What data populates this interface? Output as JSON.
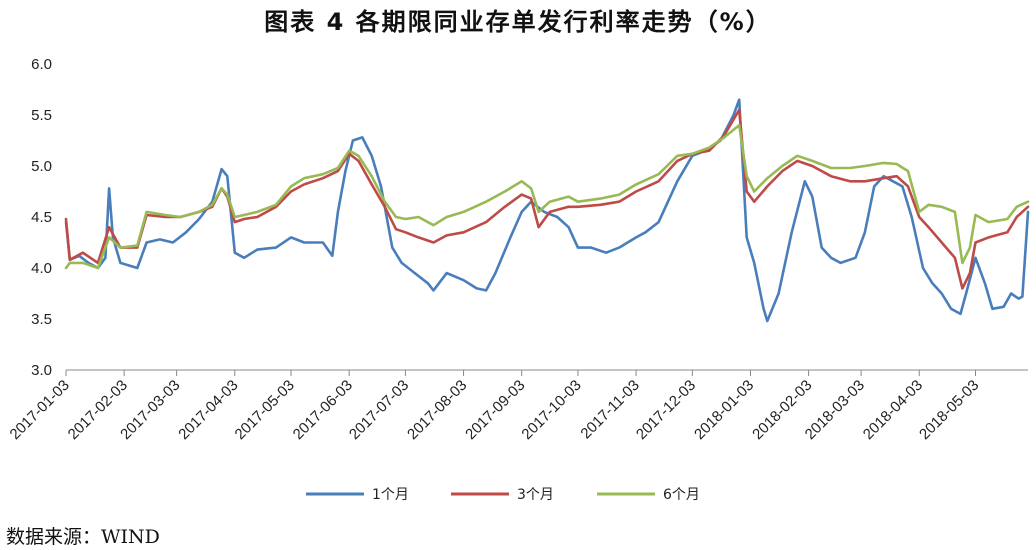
{
  "chart_data": {
    "type": "line",
    "title": "图表 4   各期限同业存单发行利率走势（%）",
    "xlabel": "",
    "ylabel": "",
    "ylim": [
      3.0,
      6.0
    ],
    "yticks": [
      "6.0",
      "5.5",
      "5.0",
      "4.5",
      "4.0",
      "3.5",
      "3.0"
    ],
    "xlim": [
      "2017-01-03",
      "2018-05-31"
    ],
    "xticks": [
      "2017-01-03",
      "2017-02-03",
      "2017-03-03",
      "2017-04-03",
      "2017-05-03",
      "2017-06-03",
      "2017-07-03",
      "2017-08-03",
      "2017-09-03",
      "2017-10-03",
      "2017-11-03",
      "2017-12-03",
      "2018-01-03",
      "2018-02-03",
      "2018-03-03",
      "2018-04-03",
      "2018-05-03"
    ],
    "grid": false,
    "legend_position": "bottom",
    "series": [
      {
        "name": "1个月",
        "color": "#4a7ebb",
        "points": [
          [
            "2017-01-03",
            4.45
          ],
          [
            "2017-01-05",
            4.08
          ],
          [
            "2017-01-10",
            4.12
          ],
          [
            "2017-01-15",
            4.05
          ],
          [
            "2017-01-20",
            4.0
          ],
          [
            "2017-01-24",
            4.1
          ],
          [
            "2017-01-26",
            4.78
          ],
          [
            "2017-01-28",
            4.3
          ],
          [
            "2017-02-01",
            4.05
          ],
          [
            "2017-02-10",
            4.0
          ],
          [
            "2017-02-15",
            4.25
          ],
          [
            "2017-02-22",
            4.28
          ],
          [
            "2017-03-01",
            4.25
          ],
          [
            "2017-03-08",
            4.35
          ],
          [
            "2017-03-15",
            4.48
          ],
          [
            "2017-03-22",
            4.65
          ],
          [
            "2017-03-27",
            4.97
          ],
          [
            "2017-03-30",
            4.9
          ],
          [
            "2017-04-03",
            4.15
          ],
          [
            "2017-04-08",
            4.1
          ],
          [
            "2017-04-15",
            4.18
          ],
          [
            "2017-04-25",
            4.2
          ],
          [
            "2017-05-03",
            4.3
          ],
          [
            "2017-05-10",
            4.25
          ],
          [
            "2017-05-20",
            4.25
          ],
          [
            "2017-05-25",
            4.12
          ],
          [
            "2017-05-28",
            4.55
          ],
          [
            "2017-06-01",
            4.95
          ],
          [
            "2017-06-05",
            5.25
          ],
          [
            "2017-06-10",
            5.28
          ],
          [
            "2017-06-15",
            5.1
          ],
          [
            "2017-06-20",
            4.8
          ],
          [
            "2017-06-26",
            4.2
          ],
          [
            "2017-07-01",
            4.05
          ],
          [
            "2017-07-08",
            3.95
          ],
          [
            "2017-07-15",
            3.85
          ],
          [
            "2017-07-18",
            3.78
          ],
          [
            "2017-07-25",
            3.95
          ],
          [
            "2017-08-03",
            3.88
          ],
          [
            "2017-08-10",
            3.8
          ],
          [
            "2017-08-15",
            3.78
          ],
          [
            "2017-08-20",
            3.95
          ],
          [
            "2017-08-28",
            4.3
          ],
          [
            "2017-09-03",
            4.55
          ],
          [
            "2017-09-08",
            4.65
          ],
          [
            "2017-09-15",
            4.55
          ],
          [
            "2017-09-22",
            4.5
          ],
          [
            "2017-09-28",
            4.4
          ],
          [
            "2017-10-03",
            4.2
          ],
          [
            "2017-10-10",
            4.2
          ],
          [
            "2017-10-18",
            4.15
          ],
          [
            "2017-10-25",
            4.2
          ],
          [
            "2017-11-03",
            4.3
          ],
          [
            "2017-11-08",
            4.35
          ],
          [
            "2017-11-15",
            4.45
          ],
          [
            "2017-11-25",
            4.85
          ],
          [
            "2017-12-03",
            5.1
          ],
          [
            "2017-12-10",
            5.15
          ],
          [
            "2017-12-18",
            5.25
          ],
          [
            "2017-12-25",
            5.5
          ],
          [
            "2017-12-28",
            5.65
          ],
          [
            "2018-01-01",
            4.3
          ],
          [
            "2018-01-05",
            4.05
          ],
          [
            "2018-01-10",
            3.6
          ],
          [
            "2018-01-12",
            3.48
          ],
          [
            "2018-01-18",
            3.75
          ],
          [
            "2018-01-25",
            4.35
          ],
          [
            "2018-02-01",
            4.85
          ],
          [
            "2018-02-05",
            4.7
          ],
          [
            "2018-02-10",
            4.2
          ],
          [
            "2018-02-15",
            4.1
          ],
          [
            "2018-02-20",
            4.05
          ],
          [
            "2018-02-28",
            4.1
          ],
          [
            "2018-03-05",
            4.35
          ],
          [
            "2018-03-10",
            4.8
          ],
          [
            "2018-03-15",
            4.9
          ],
          [
            "2018-03-20",
            4.85
          ],
          [
            "2018-03-25",
            4.8
          ],
          [
            "2018-03-30",
            4.5
          ],
          [
            "2018-04-05",
            4.0
          ],
          [
            "2018-04-10",
            3.85
          ],
          [
            "2018-04-15",
            3.75
          ],
          [
            "2018-04-20",
            3.6
          ],
          [
            "2018-04-25",
            3.55
          ],
          [
            "2018-04-28",
            3.75
          ],
          [
            "2018-05-03",
            4.1
          ],
          [
            "2018-05-08",
            3.85
          ],
          [
            "2018-05-12",
            3.6
          ],
          [
            "2018-05-18",
            3.62
          ],
          [
            "2018-05-22",
            3.75
          ],
          [
            "2018-05-26",
            3.7
          ],
          [
            "2018-05-28",
            3.72
          ],
          [
            "2018-05-31",
            4.55
          ]
        ]
      },
      {
        "name": "3个月",
        "color": "#be4b48",
        "points": [
          [
            "2017-01-03",
            4.48
          ],
          [
            "2017-01-05",
            4.08
          ],
          [
            "2017-01-12",
            4.15
          ],
          [
            "2017-01-20",
            4.05
          ],
          [
            "2017-01-26",
            4.4
          ],
          [
            "2017-02-01",
            4.2
          ],
          [
            "2017-02-10",
            4.2
          ],
          [
            "2017-02-15",
            4.52
          ],
          [
            "2017-02-25",
            4.5
          ],
          [
            "2017-03-05",
            4.5
          ],
          [
            "2017-03-15",
            4.55
          ],
          [
            "2017-03-22",
            4.6
          ],
          [
            "2017-03-27",
            4.78
          ],
          [
            "2017-03-30",
            4.7
          ],
          [
            "2017-04-03",
            4.45
          ],
          [
            "2017-04-08",
            4.48
          ],
          [
            "2017-04-15",
            4.5
          ],
          [
            "2017-04-25",
            4.6
          ],
          [
            "2017-05-03",
            4.75
          ],
          [
            "2017-05-10",
            4.82
          ],
          [
            "2017-05-20",
            4.88
          ],
          [
            "2017-05-28",
            4.95
          ],
          [
            "2017-06-03",
            5.12
          ],
          [
            "2017-06-08",
            5.05
          ],
          [
            "2017-06-15",
            4.82
          ],
          [
            "2017-06-22",
            4.6
          ],
          [
            "2017-06-28",
            4.38
          ],
          [
            "2017-07-03",
            4.35
          ],
          [
            "2017-07-10",
            4.3
          ],
          [
            "2017-07-18",
            4.25
          ],
          [
            "2017-07-25",
            4.32
          ],
          [
            "2017-08-03",
            4.35
          ],
          [
            "2017-08-15",
            4.45
          ],
          [
            "2017-08-25",
            4.6
          ],
          [
            "2017-09-03",
            4.72
          ],
          [
            "2017-09-08",
            4.68
          ],
          [
            "2017-09-12",
            4.4
          ],
          [
            "2017-09-18",
            4.55
          ],
          [
            "2017-09-28",
            4.6
          ],
          [
            "2017-10-03",
            4.6
          ],
          [
            "2017-10-15",
            4.62
          ],
          [
            "2017-10-25",
            4.65
          ],
          [
            "2017-11-03",
            4.75
          ],
          [
            "2017-11-15",
            4.85
          ],
          [
            "2017-11-25",
            5.05
          ],
          [
            "2017-12-03",
            5.12
          ],
          [
            "2017-12-12",
            5.15
          ],
          [
            "2017-12-20",
            5.3
          ],
          [
            "2017-12-28",
            5.55
          ],
          [
            "2018-01-01",
            4.75
          ],
          [
            "2018-01-05",
            4.65
          ],
          [
            "2018-01-12",
            4.8
          ],
          [
            "2018-01-20",
            4.95
          ],
          [
            "2018-01-28",
            5.05
          ],
          [
            "2018-02-05",
            5.0
          ],
          [
            "2018-02-15",
            4.9
          ],
          [
            "2018-02-25",
            4.85
          ],
          [
            "2018-03-05",
            4.85
          ],
          [
            "2018-03-15",
            4.88
          ],
          [
            "2018-03-22",
            4.9
          ],
          [
            "2018-03-28",
            4.8
          ],
          [
            "2018-04-03",
            4.5
          ],
          [
            "2018-04-08",
            4.4
          ],
          [
            "2018-04-15",
            4.25
          ],
          [
            "2018-04-22",
            4.1
          ],
          [
            "2018-04-26",
            3.8
          ],
          [
            "2018-04-30",
            3.95
          ],
          [
            "2018-05-03",
            4.25
          ],
          [
            "2018-05-10",
            4.3
          ],
          [
            "2018-05-20",
            4.35
          ],
          [
            "2018-05-25",
            4.5
          ],
          [
            "2018-05-31",
            4.6
          ]
        ]
      },
      {
        "name": "6个月",
        "color": "#98b954",
        "points": [
          [
            "2017-01-03",
            4.0
          ],
          [
            "2017-01-05",
            4.05
          ],
          [
            "2017-01-12",
            4.05
          ],
          [
            "2017-01-20",
            4.0
          ],
          [
            "2017-01-26",
            4.3
          ],
          [
            "2017-02-01",
            4.2
          ],
          [
            "2017-02-10",
            4.22
          ],
          [
            "2017-02-15",
            4.55
          ],
          [
            "2017-02-25",
            4.52
          ],
          [
            "2017-03-05",
            4.5
          ],
          [
            "2017-03-15",
            4.55
          ],
          [
            "2017-03-22",
            4.62
          ],
          [
            "2017-03-27",
            4.78
          ],
          [
            "2017-03-30",
            4.72
          ],
          [
            "2017-04-03",
            4.5
          ],
          [
            "2017-04-08",
            4.52
          ],
          [
            "2017-04-15",
            4.55
          ],
          [
            "2017-04-25",
            4.62
          ],
          [
            "2017-05-03",
            4.8
          ],
          [
            "2017-05-10",
            4.88
          ],
          [
            "2017-05-20",
            4.92
          ],
          [
            "2017-05-28",
            4.98
          ],
          [
            "2017-06-03",
            5.15
          ],
          [
            "2017-06-08",
            5.1
          ],
          [
            "2017-06-15",
            4.9
          ],
          [
            "2017-06-22",
            4.65
          ],
          [
            "2017-06-28",
            4.5
          ],
          [
            "2017-07-03",
            4.48
          ],
          [
            "2017-07-10",
            4.5
          ],
          [
            "2017-07-18",
            4.42
          ],
          [
            "2017-07-25",
            4.5
          ],
          [
            "2017-08-03",
            4.55
          ],
          [
            "2017-08-15",
            4.65
          ],
          [
            "2017-08-25",
            4.75
          ],
          [
            "2017-09-03",
            4.85
          ],
          [
            "2017-09-08",
            4.78
          ],
          [
            "2017-09-12",
            4.55
          ],
          [
            "2017-09-18",
            4.65
          ],
          [
            "2017-09-28",
            4.7
          ],
          [
            "2017-10-03",
            4.65
          ],
          [
            "2017-10-15",
            4.68
          ],
          [
            "2017-10-25",
            4.72
          ],
          [
            "2017-11-03",
            4.82
          ],
          [
            "2017-11-15",
            4.92
          ],
          [
            "2017-11-25",
            5.1
          ],
          [
            "2017-12-03",
            5.12
          ],
          [
            "2017-12-12",
            5.18
          ],
          [
            "2017-12-20",
            5.28
          ],
          [
            "2017-12-28",
            5.4
          ],
          [
            "2018-01-01",
            4.9
          ],
          [
            "2018-01-05",
            4.75
          ],
          [
            "2018-01-12",
            4.88
          ],
          [
            "2018-01-20",
            5.0
          ],
          [
            "2018-01-28",
            5.1
          ],
          [
            "2018-02-05",
            5.05
          ],
          [
            "2018-02-15",
            4.98
          ],
          [
            "2018-02-25",
            4.98
          ],
          [
            "2018-03-05",
            5.0
          ],
          [
            "2018-03-15",
            5.03
          ],
          [
            "2018-03-22",
            5.02
          ],
          [
            "2018-03-28",
            4.95
          ],
          [
            "2018-04-03",
            4.55
          ],
          [
            "2018-04-08",
            4.62
          ],
          [
            "2018-04-15",
            4.6
          ],
          [
            "2018-04-22",
            4.55
          ],
          [
            "2018-04-26",
            4.05
          ],
          [
            "2018-04-30",
            4.2
          ],
          [
            "2018-05-03",
            4.52
          ],
          [
            "2018-05-10",
            4.45
          ],
          [
            "2018-05-20",
            4.48
          ],
          [
            "2018-05-25",
            4.6
          ],
          [
            "2018-05-31",
            4.65
          ]
        ]
      }
    ]
  },
  "source_note": "数据来源：WIND"
}
